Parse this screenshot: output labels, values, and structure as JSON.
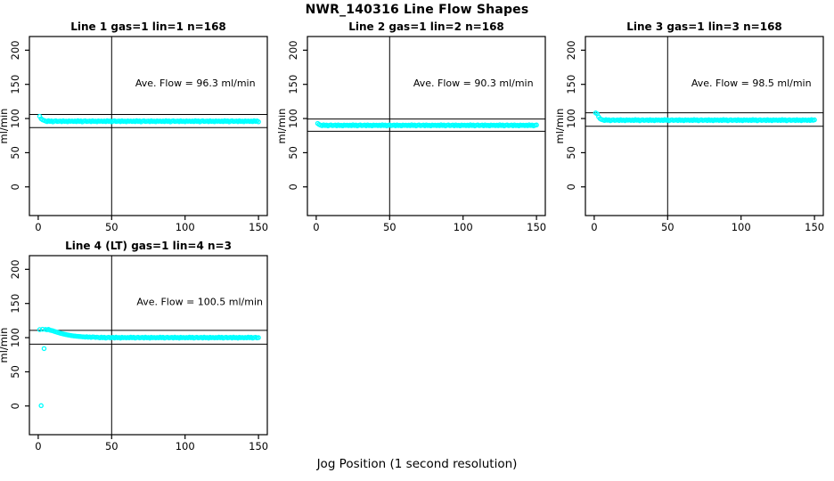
{
  "page": {
    "background": "#ffffff",
    "foreground": "#000000"
  },
  "header": {
    "title": "NWR_140316  Line Flow Shapes"
  },
  "footer": {
    "xlabel": "Jog Position (1 second resolution)"
  },
  "chart_data": {
    "type": "scatter",
    "title": "NWR_140316  Line Flow Shapes",
    "xlabel": "Jog Position (1 second resolution)",
    "ylabel": "ml/min",
    "point_color": "#00FFFF",
    "point_style": "open-circle",
    "axis_color": "#000000",
    "grid": false,
    "legend": "none",
    "x_ticks": [
      0,
      50,
      100,
      150
    ],
    "y_ticks": [
      0,
      50,
      100,
      150,
      200
    ],
    "xlim": [
      -6,
      156
    ],
    "ylim": [
      -42,
      220
    ],
    "vline_x": 50,
    "charts": [
      {
        "title": "Line 1 gas=1 lin=1 n=168",
        "n": 168,
        "ave_flow": 96.3,
        "annotation": "Ave. Flow =  96.3  ml/min",
        "ann_pos": {
          "x": 107,
          "y": 152
        },
        "ref_lines": [
          105.9,
          86.7
        ],
        "x_start": 1,
        "y": [
          103.2,
          99.6,
          98.1,
          97.2,
          96.3,
          95.5,
          96.8,
          95.8,
          96.5,
          95.2,
          96.1,
          96.6,
          95.6,
          96.0,
          96.4,
          95.4,
          96.7,
          95.7,
          96.2,
          95.3,
          96.5,
          95.9,
          96.3,
          95.6,
          96.3,
          95.5,
          96.8,
          95.8,
          96.5,
          95.2,
          96.1,
          96.6,
          95.6,
          96.0,
          96.4,
          95.4,
          96.7,
          95.7,
          96.2,
          95.3,
          96.5,
          95.9,
          96.3,
          95.6,
          96.3,
          95.5,
          96.8,
          95.8,
          96.5,
          95.2,
          96.1,
          96.6,
          95.6,
          96.0,
          96.4,
          95.4,
          96.7,
          95.7,
          96.2,
          95.3,
          96.5,
          95.9,
          96.3,
          95.6,
          96.3,
          95.5,
          96.8,
          95.8,
          96.5,
          95.2,
          96.1,
          96.6,
          95.6,
          96.0,
          96.4,
          95.4,
          96.7,
          95.7,
          96.2,
          95.3,
          96.5,
          95.9,
          96.3,
          95.6,
          96.3,
          95.5,
          96.8,
          95.8,
          96.5,
          95.2,
          96.1,
          96.6,
          95.6,
          96.0,
          96.4,
          95.4,
          96.7,
          95.7,
          96.2,
          95.3,
          96.5,
          95.9,
          96.3,
          95.6,
          96.3,
          95.5,
          96.8,
          95.8,
          96.5,
          95.2,
          96.1,
          96.6,
          95.6,
          96.0,
          96.4,
          95.4,
          96.7,
          95.7,
          96.2,
          95.3,
          96.5,
          95.9,
          96.3,
          95.6,
          96.3,
          95.5,
          96.8,
          95.8,
          96.5,
          95.2,
          96.1,
          96.6,
          95.6,
          96.0,
          96.4,
          95.4,
          96.7,
          95.7,
          96.2,
          95.3,
          96.5,
          95.9,
          96.3,
          95.6,
          96.3,
          95.5,
          96.8,
          95.8,
          96.5,
          95.2
        ]
      },
      {
        "title": "Line 2 gas=1 lin=2 n=168",
        "n": 168,
        "ave_flow": 90.3,
        "annotation": "Ave. Flow =  90.3  ml/min",
        "ann_pos": {
          "x": 107,
          "y": 152
        },
        "ref_lines": [
          99.3,
          81.3
        ],
        "x_start": 1,
        "y": [
          92.8,
          91.2,
          90.3,
          89.5,
          90.8,
          89.8,
          90.5,
          89.2,
          90.1,
          90.6,
          89.6,
          90.0,
          90.4,
          89.4,
          90.7,
          89.7,
          90.2,
          89.3,
          90.5,
          89.9,
          90.3,
          89.6,
          90.3,
          89.5,
          90.8,
          89.8,
          90.5,
          89.2,
          90.1,
          90.6,
          89.6,
          90.0,
          90.4,
          89.4,
          90.7,
          89.7,
          90.2,
          89.3,
          90.5,
          89.9,
          90.3,
          89.6,
          90.3,
          89.5,
          90.8,
          89.8,
          90.5,
          89.2,
          90.1,
          90.6,
          89.6,
          90.0,
          90.4,
          89.4,
          90.7,
          89.7,
          90.2,
          89.3,
          90.5,
          89.9,
          90.3,
          89.6,
          90.3,
          89.5,
          90.8,
          89.8,
          90.5,
          89.2,
          90.1,
          90.6,
          89.6,
          90.0,
          90.4,
          89.4,
          90.7,
          89.7,
          90.2,
          89.3,
          90.5,
          89.9,
          90.3,
          89.6,
          90.3,
          89.5,
          90.8,
          89.8,
          90.5,
          89.2,
          90.1,
          90.6,
          89.6,
          90.0,
          90.4,
          89.4,
          90.7,
          89.7,
          90.2,
          89.3,
          90.5,
          89.9,
          90.3,
          89.6,
          90.3,
          89.5,
          90.8,
          89.8,
          90.5,
          89.2,
          90.1,
          90.6,
          89.6,
          90.0,
          90.4,
          89.4,
          90.7,
          89.7,
          90.2,
          89.3,
          90.5,
          89.9,
          90.3,
          89.6,
          90.3,
          89.5,
          90.8,
          89.8,
          90.5,
          89.2,
          90.1,
          90.6,
          89.6,
          90.0,
          90.4,
          89.4,
          90.7,
          89.7,
          90.2,
          89.3,
          90.5,
          89.9,
          90.3,
          89.6,
          90.3,
          89.5,
          90.8,
          89.8,
          90.5,
          89.2,
          90.1,
          90.6
        ]
      },
      {
        "title": "Line 3 gas=1 lin=3 n=168",
        "n": 168,
        "ave_flow": 98.5,
        "annotation": "Ave. Flow =  98.5  ml/min",
        "ann_pos": {
          "x": 107,
          "y": 152
        },
        "ref_lines": [
          108.4,
          88.7
        ],
        "x_start": 1,
        "y": [
          108.2,
          106.8,
          102.5,
          99.8,
          98.6,
          97.9,
          97.1,
          98.4,
          97.4,
          98.1,
          96.8,
          97.7,
          98.2,
          97.2,
          97.6,
          98.0,
          97.0,
          98.3,
          97.3,
          97.8,
          96.9,
          98.1,
          97.5,
          97.9,
          97.2,
          97.9,
          97.1,
          98.4,
          97.4,
          98.1,
          96.8,
          97.7,
          98.2,
          97.2,
          97.6,
          98.0,
          97.0,
          98.3,
          97.3,
          97.8,
          96.9,
          98.1,
          97.5,
          97.9,
          97.2,
          97.9,
          97.1,
          98.4,
          97.4,
          98.1,
          96.8,
          97.7,
          98.2,
          97.2,
          97.6,
          98.0,
          97.0,
          98.3,
          97.3,
          97.8,
          96.9,
          98.1,
          97.5,
          97.9,
          97.2,
          97.9,
          97.1,
          98.4,
          97.4,
          98.1,
          96.8,
          97.7,
          98.2,
          97.2,
          97.6,
          98.0,
          97.0,
          98.3,
          97.3,
          97.8,
          96.9,
          98.1,
          97.5,
          97.9,
          97.2,
          97.9,
          97.1,
          98.4,
          97.4,
          98.1,
          96.8,
          97.7,
          98.2,
          97.2,
          97.6,
          98.0,
          97.0,
          98.3,
          97.3,
          97.8,
          96.9,
          98.1,
          97.5,
          97.9,
          97.2,
          97.9,
          97.1,
          98.4,
          97.4,
          98.1,
          96.8,
          97.7,
          98.2,
          97.2,
          97.6,
          98.0,
          97.0,
          98.3,
          97.3,
          97.8,
          96.9,
          98.1,
          97.5,
          97.9,
          97.2,
          97.9,
          97.1,
          98.4,
          97.4,
          98.1,
          96.8,
          97.7,
          98.2,
          97.2,
          97.6,
          98.0,
          97.0,
          98.3,
          97.3,
          97.8,
          96.9,
          98.1,
          97.5,
          97.9,
          97.2,
          97.9,
          97.1,
          98.4,
          97.4,
          98.1
        ]
      },
      {
        "title": "Line 4 (LT) gas=1 lin=4 n=3",
        "n": 3,
        "ave_flow": 100.5,
        "annotation": "Ave. Flow =  100.5  ml/min",
        "ann_pos": {
          "x": 110,
          "y": 153
        },
        "ref_lines": [
          110.6,
          90.5
        ],
        "x_start": 1,
        "y": [
          111.8,
          0.5,
          112.3,
          84.0,
          112.0,
          111.5,
          112.2,
          111.0,
          110.5,
          110.0,
          109.2,
          108.5,
          107.8,
          107.2,
          106.5,
          106.0,
          105.4,
          104.9,
          104.4,
          104.0,
          103.6,
          103.2,
          102.9,
          102.6,
          102.3,
          102.1,
          101.9,
          101.7,
          101.5,
          101.3,
          101.2,
          100.8,
          101.4,
          100.6,
          101.1,
          100.4,
          101.0,
          100.9,
          100.3,
          100.7,
          100.3,
          99.7,
          100.8,
          99.9,
          100.5,
          99.4,
          100.1,
          100.6,
          99.6,
          100.0,
          100.4,
          99.5,
          100.7,
          99.8,
          100.2,
          99.3,
          100.5,
          99.9,
          100.3,
          99.6,
          100.3,
          99.7,
          100.8,
          99.9,
          100.5,
          99.4,
          100.1,
          100.6,
          99.6,
          100.0,
          100.4,
          99.5,
          100.7,
          99.8,
          100.2,
          99.3,
          100.5,
          99.9,
          100.3,
          99.6,
          100.3,
          99.7,
          100.8,
          99.9,
          100.5,
          99.4,
          100.1,
          100.6,
          99.6,
          100.0,
          100.4,
          99.5,
          100.7,
          99.8,
          100.2,
          99.3,
          100.5,
          99.9,
          100.3,
          99.6,
          100.3,
          99.7,
          100.8,
          99.9,
          100.5,
          99.4,
          100.1,
          100.6,
          99.6,
          100.0,
          100.4,
          99.5,
          100.7,
          99.8,
          100.2,
          99.3,
          100.5,
          99.9,
          100.3,
          99.6,
          100.3,
          99.7,
          100.8,
          99.9,
          100.5,
          99.4,
          100.1,
          100.6,
          99.6,
          100.0,
          100.4,
          99.5,
          100.7,
          99.8,
          100.2,
          99.3,
          100.5,
          99.9,
          100.3,
          99.6,
          100.3,
          99.7,
          100.8,
          99.9,
          100.5,
          99.4,
          100.1,
          100.6,
          99.6,
          100.0
        ]
      }
    ]
  }
}
